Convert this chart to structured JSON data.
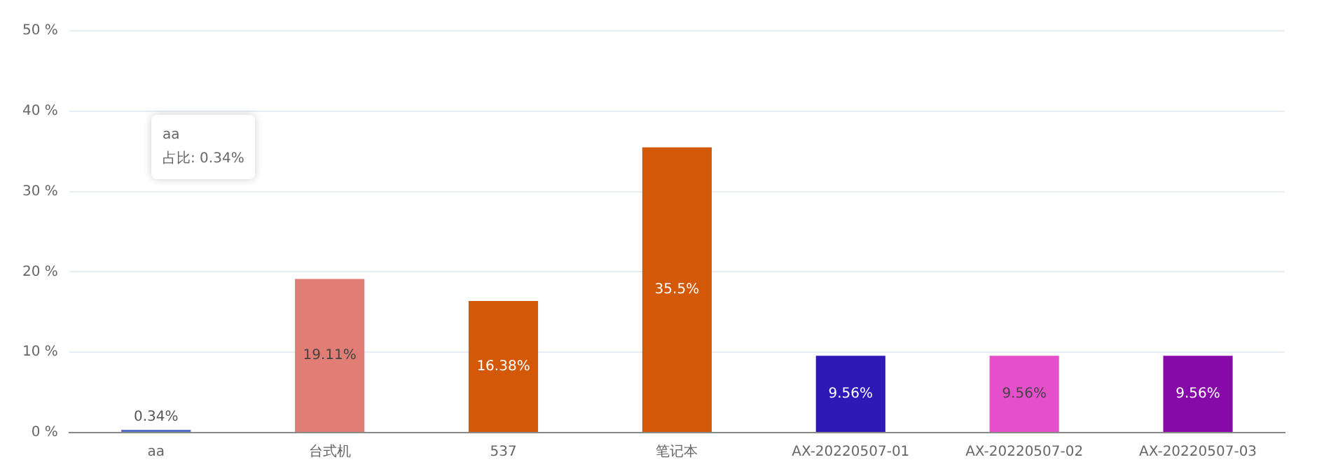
{
  "chart_data": {
    "type": "bar",
    "categories": [
      "aa",
      "台式机",
      "537",
      "笔记本",
      "AX-20220507-01",
      "AX-20220507-02",
      "AX-20220507-03"
    ],
    "values": [
      0.34,
      19.11,
      16.38,
      35.5,
      9.56,
      9.56,
      9.56
    ],
    "colors": [
      "#5470c6",
      "#e07e76",
      "#d35908",
      "#d35908",
      "#2e18b8",
      "#e64fcc",
      "#860aa8"
    ],
    "value_labels": [
      "0.34%",
      "19.11%",
      "16.38%",
      "35.5%",
      "9.56%",
      "9.56%",
      "9.56%"
    ],
    "ylim": [
      0,
      50
    ],
    "yticks": [
      {
        "value": 0,
        "label": "0 %"
      },
      {
        "value": 10,
        "label": "10 %"
      },
      {
        "value": 20,
        "label": "20 %"
      },
      {
        "value": 30,
        "label": "30 %"
      },
      {
        "value": 40,
        "label": "40 %"
      },
      {
        "value": 50,
        "label": "50 %"
      }
    ],
    "grid": "y",
    "annotations": [
      "aa",
      "占比: 0.34%"
    ]
  }
}
